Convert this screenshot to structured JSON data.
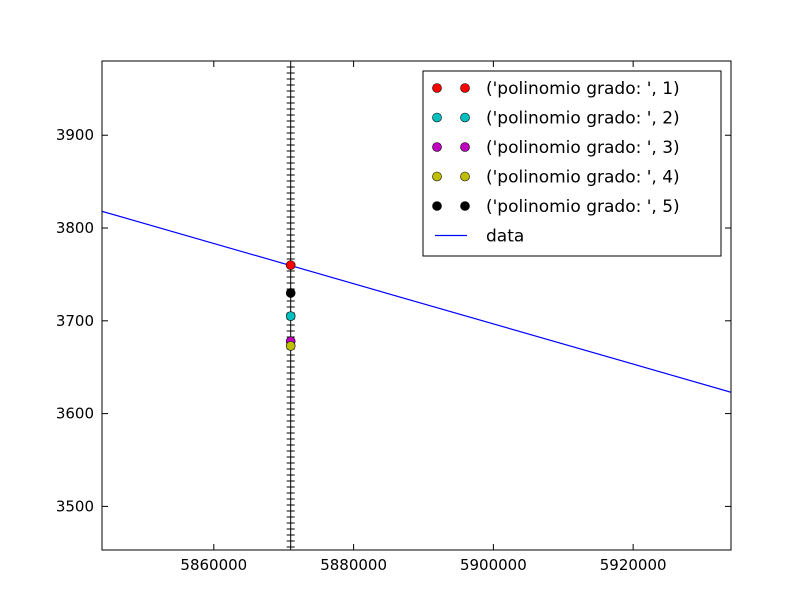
{
  "chart_data": {
    "type": "scatter",
    "title": "",
    "xlabel": "",
    "ylabel": "",
    "xlim": [
      5844000,
      5934000
    ],
    "ylim": [
      3453,
      3980
    ],
    "xticks": [
      5860000,
      5880000,
      5900000,
      5920000
    ],
    "xtick_labels": [
      "5860000",
      "5880000",
      "5900000",
      "5920000"
    ],
    "yticks": [
      3500,
      3600,
      3700,
      3800,
      3900
    ],
    "ytick_labels": [
      "3500",
      "3600",
      "3700",
      "3800",
      "3900"
    ],
    "grid": false,
    "legend_position": "top-right",
    "series": [
      {
        "name": "('polinomio grado: ', 1)",
        "kind": "points",
        "color": "#ff0000",
        "x": [
          5871000
        ],
        "y": [
          3760
        ]
      },
      {
        "name": "('polinomio grado: ', 2)",
        "kind": "points",
        "color": "#00bfbf",
        "x": [
          5871000
        ],
        "y": [
          3705
        ]
      },
      {
        "name": "('polinomio grado: ', 3)",
        "kind": "points",
        "color": "#bf00bf",
        "x": [
          5871000
        ],
        "y": [
          3678
        ]
      },
      {
        "name": "('polinomio grado: ', 4)",
        "kind": "points",
        "color": "#bfbf00",
        "x": [
          5871000
        ],
        "y": [
          3673
        ]
      },
      {
        "name": "('polinomio grado: ', 5)",
        "kind": "points",
        "color": "#000000",
        "x": [
          5871000
        ],
        "y": [
          3730
        ]
      },
      {
        "name": "data",
        "kind": "line",
        "color": "#0000ff",
        "x": [
          5844000,
          5934000
        ],
        "y": [
          3818,
          3623
        ]
      },
      {
        "name": "",
        "kind": "vertical-ticked-line",
        "color": "#000000",
        "x": [
          5871000,
          5871000
        ],
        "y": [
          3453,
          3980
        ]
      }
    ]
  }
}
